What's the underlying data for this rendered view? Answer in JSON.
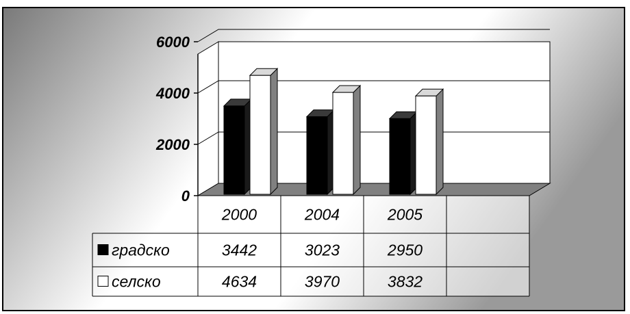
{
  "chart_data": {
    "type": "bar",
    "style": "3d-clustered-column-with-data-table",
    "categories": [
      "2000",
      "2004",
      "2005"
    ],
    "series": [
      {
        "name": "градско",
        "values": [
          3442,
          3023,
          2950
        ],
        "color": "#000000"
      },
      {
        "name": "селско",
        "values": [
          4634,
          3970,
          3832
        ],
        "color": "#ffffff"
      }
    ],
    "y_ticks": [
      "0",
      "2000",
      "4000",
      "6000"
    ],
    "ylim": [
      0,
      6000
    ],
    "grid": true,
    "legend": "data-table-left",
    "colors": {
      "floor": "#808080",
      "background_dark": "#7a7a7a",
      "background_light": "#ffffff"
    }
  }
}
